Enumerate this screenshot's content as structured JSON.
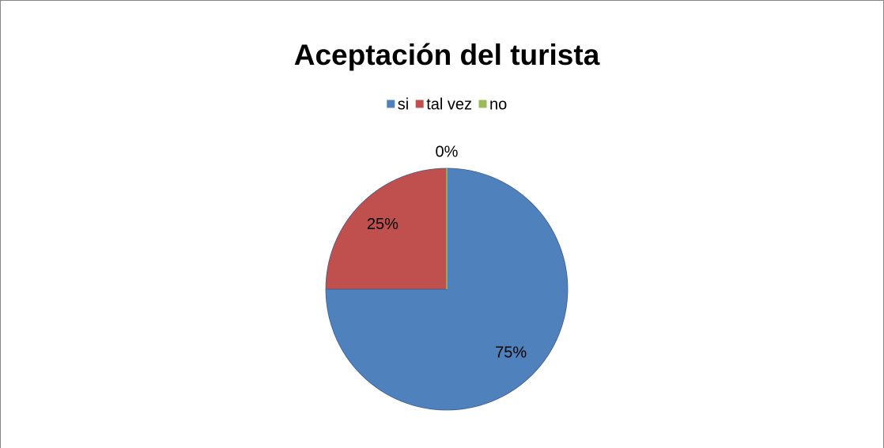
{
  "chart_data": {
    "type": "pie",
    "title": "Aceptación del turista",
    "categories": [
      "si",
      "tal vez",
      "no"
    ],
    "values": [
      75,
      25,
      0
    ],
    "value_labels": [
      "75%",
      "25%",
      "0%"
    ],
    "colors": [
      "#4f81bd",
      "#c0504d",
      "#9bbb59"
    ],
    "legend": "top"
  }
}
